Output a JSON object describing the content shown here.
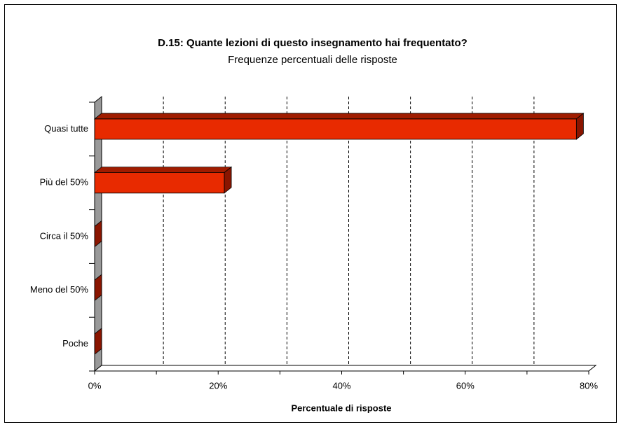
{
  "chart_data": {
    "type": "bar3d_horizontal",
    "title": "D.15: Quante lezioni di questo insegnamento hai frequentato?",
    "subtitle": "Frequenze percentuali delle risposte",
    "x_label": "Percentuale di risposte",
    "categories": [
      "Quasi tutte",
      "Più del 50%",
      "Circa il 50%",
      "Meno del 50%",
      "Poche"
    ],
    "values": [
      78,
      21,
      0,
      0,
      0
    ],
    "color": "#e82a00",
    "xlim": [
      0,
      80
    ],
    "xticks": [
      {
        "value": 0,
        "label": "0%"
      },
      {
        "value": 20,
        "label": "20%"
      },
      {
        "value": 40,
        "label": "40%"
      },
      {
        "value": 60,
        "label": "60%"
      },
      {
        "value": 80,
        "label": "80%"
      }
    ],
    "x_minor_ticks": [
      10,
      30,
      50,
      70
    ],
    "grid": true
  }
}
